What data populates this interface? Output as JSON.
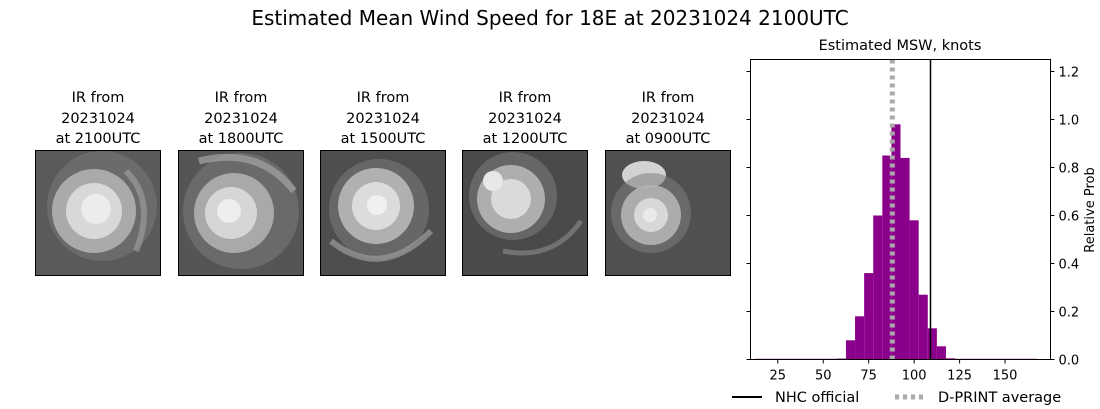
{
  "page": {
    "title": "Estimated Mean Wind Speed for 18E at 20231024 2100UTC"
  },
  "ir_panels": [
    {
      "line1": "IR from",
      "line2": "20231024",
      "line3": "at 2100UTC"
    },
    {
      "line1": "IR from",
      "line2": "20231024",
      "line3": "at 1800UTC"
    },
    {
      "line1": "IR from",
      "line2": "20231024",
      "line3": "at 1500UTC"
    },
    {
      "line1": "IR from",
      "line2": "20231024",
      "line3": "at 1200UTC"
    },
    {
      "line1": "IR from",
      "line2": "20231024",
      "line3": "at 0900UTC"
    }
  ],
  "chart_data": {
    "type": "bar",
    "title": "Estimated MSW, knots",
    "xlabel": "",
    "ylabel": "Relative Prob",
    "xlim": [
      10,
      175
    ],
    "ylim": [
      0,
      1.25
    ],
    "x_ticks": [
      25,
      50,
      75,
      100,
      125,
      150
    ],
    "y_ticks": [
      0.0,
      0.2,
      0.4,
      0.6,
      0.8,
      1.0,
      1.2
    ],
    "y_tick_labels": [
      "0.0",
      "0.2",
      "0.4",
      "0.6",
      "0.8",
      "1.0",
      "1.2"
    ],
    "bin_width": 5,
    "bar_color": "#8b008b",
    "bins": [
      {
        "x": 15,
        "y": 0.003
      },
      {
        "x": 20,
        "y": 0.003
      },
      {
        "x": 25,
        "y": 0.003
      },
      {
        "x": 30,
        "y": 0.003
      },
      {
        "x": 35,
        "y": 0.003
      },
      {
        "x": 40,
        "y": 0.003
      },
      {
        "x": 45,
        "y": 0.003
      },
      {
        "x": 50,
        "y": 0.003
      },
      {
        "x": 55,
        "y": 0.003
      },
      {
        "x": 60,
        "y": 0.004
      },
      {
        "x": 65,
        "y": 0.08
      },
      {
        "x": 70,
        "y": 0.18
      },
      {
        "x": 75,
        "y": 0.36
      },
      {
        "x": 80,
        "y": 0.6
      },
      {
        "x": 85,
        "y": 0.85
      },
      {
        "x": 90,
        "y": 0.98
      },
      {
        "x": 95,
        "y": 0.84
      },
      {
        "x": 100,
        "y": 0.58
      },
      {
        "x": 105,
        "y": 0.27
      },
      {
        "x": 110,
        "y": 0.13
      },
      {
        "x": 115,
        "y": 0.055
      },
      {
        "x": 120,
        "y": 0.005
      },
      {
        "x": 125,
        "y": 0.003
      },
      {
        "x": 130,
        "y": 0.003
      },
      {
        "x": 135,
        "y": 0.003
      },
      {
        "x": 140,
        "y": 0.003
      },
      {
        "x": 145,
        "y": 0.003
      },
      {
        "x": 150,
        "y": 0.003
      },
      {
        "x": 155,
        "y": 0.003
      },
      {
        "x": 160,
        "y": 0.003
      },
      {
        "x": 165,
        "y": 0.003
      }
    ],
    "nhc_official": {
      "label": "NHC official",
      "x": 109,
      "color": "#000000"
    },
    "dprint_average": {
      "label": "D-PRINT average",
      "x": 88,
      "color": "#aaaaaa"
    },
    "legend": "bottom"
  }
}
